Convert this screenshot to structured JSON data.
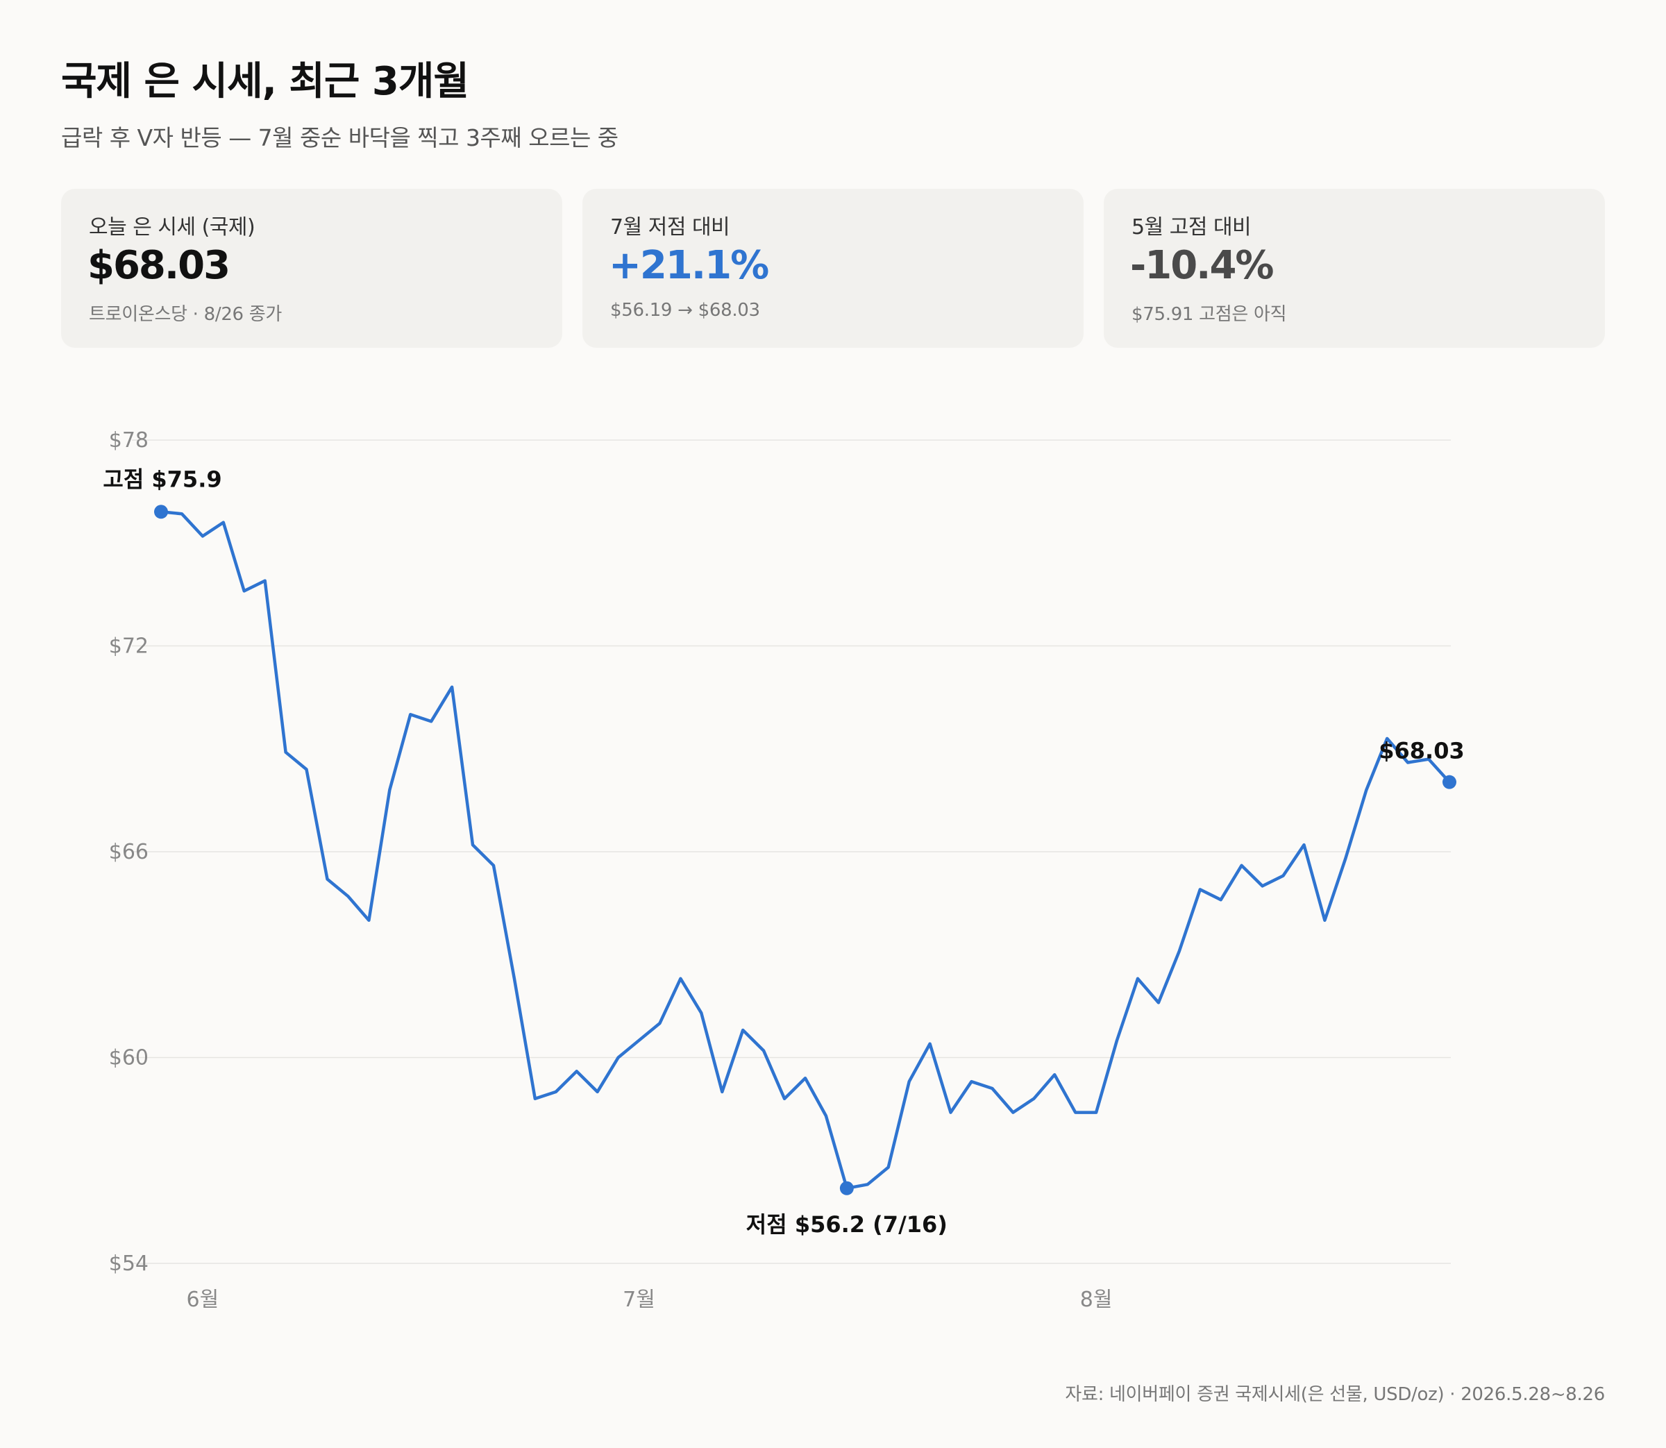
{
  "title": "국제 은 시세, 최근 3개월",
  "subtitle": "급락 후 V자 반등 — 7월 중순 바닥을 찍고 3주째 오르는 중",
  "cards": [
    {
      "label": "오늘 은 시세 (국제)",
      "value": "$68.03",
      "note": "트로이온스당 · 8/26 종가",
      "value_color": "#111111"
    },
    {
      "label": "7월 저점 대비",
      "value": "+21.1%",
      "note": "$56.19 → $68.03",
      "value_color": "#2f74d0"
    },
    {
      "label": "5월 고점 대비",
      "value": "-10.4%",
      "note": "$75.91 고점은 아직",
      "value_color": "#4a4a4a"
    }
  ],
  "source": "자료: 네이버페이 증권 국제시세(은 선물, USD/oz) · 2026.5.28~8.26",
  "colors": {
    "line": "#2f74d0",
    "grid": "#e6e5e2",
    "tick": "#888888",
    "annotation": "#111111"
  },
  "chart_data": {
    "type": "line",
    "title": "국제 은 시세, 최근 3개월",
    "xlabel": "",
    "ylabel": "",
    "ylim": [
      54,
      78
    ],
    "y_ticks": [
      54,
      60,
      66,
      72,
      78
    ],
    "y_tick_labels": [
      "$54",
      "$60",
      "$66",
      "$72",
      "$78"
    ],
    "x_ticks": [
      {
        "date": "6월",
        "index": 2
      },
      {
        "date": "7월",
        "index": 23
      },
      {
        "date": "8월",
        "index": 45
      }
    ],
    "grid": true,
    "legend": "none",
    "series": [
      {
        "values": [
          75.91,
          75.85,
          75.2,
          75.6,
          73.6,
          73.9,
          68.9,
          68.4,
          65.2,
          64.7,
          64.0,
          67.8,
          70.0,
          69.8,
          70.8,
          66.2,
          65.6,
          62.3,
          58.8,
          59.0,
          59.6,
          59.0,
          60.0,
          60.5,
          61.0,
          62.3,
          61.3,
          59.0,
          60.8,
          60.2,
          58.8,
          59.4,
          58.3,
          56.19,
          56.3,
          56.8,
          59.3,
          60.4,
          58.4,
          59.3,
          59.1,
          58.4,
          58.8,
          59.5,
          58.4,
          58.4,
          60.5,
          62.3,
          61.6,
          63.1,
          64.9,
          64.6,
          65.6,
          65.0,
          65.3,
          66.2,
          64.0,
          65.8,
          67.8,
          69.3,
          68.6,
          68.7,
          68.03
        ],
        "color": "#2f74d0"
      }
    ],
    "annotations": [
      {
        "text": "고점 $75.9",
        "index": 0,
        "value": 75.91,
        "position": "above"
      },
      {
        "text": "저점 $56.2 (7/16)",
        "index": 33,
        "value": 56.19,
        "position": "below"
      },
      {
        "text": "$68.03",
        "index": 62,
        "value": 68.03,
        "position": "above-left"
      }
    ]
  }
}
